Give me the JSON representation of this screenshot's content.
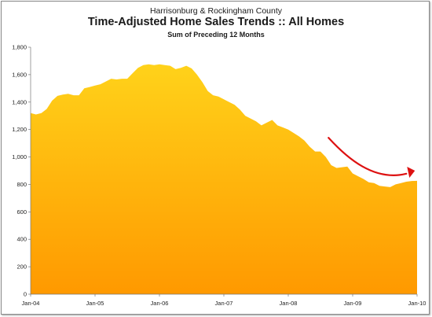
{
  "chart_data": {
    "type": "area",
    "title_line1": "Harrisonburg & Rockingham County",
    "title": "Time-Adjusted Home Sales Trends  ::  All Homes",
    "subtitle": "Sum of Preceding 12 Months",
    "xlabel": "",
    "ylabel": "",
    "ylim": [
      0,
      1800
    ],
    "yticks": [
      0,
      200,
      400,
      600,
      800,
      1000,
      1200,
      1400,
      1600,
      1800
    ],
    "ytick_labels": [
      "0",
      "200",
      "400",
      "600",
      "800",
      "1,000",
      "1,200",
      "1,400",
      "1,600",
      "1,800"
    ],
    "xticks": [
      0,
      12,
      24,
      36,
      48,
      60,
      72
    ],
    "xtick_labels": [
      "Jan-04",
      "Jan-05",
      "Jan-06",
      "Jan-07",
      "Jan-08",
      "Jan-09",
      "Jan-10"
    ],
    "xlim": [
      0,
      72
    ],
    "grid": false,
    "fill_colors": [
      "#ffd21a",
      "#ff9900"
    ],
    "annotation_color": "#dd1111",
    "x": [
      0,
      1,
      2,
      3,
      4,
      5,
      6,
      7,
      8,
      9,
      10,
      11,
      12,
      13,
      14,
      15,
      16,
      17,
      18,
      19,
      20,
      21,
      22,
      23,
      24,
      25,
      26,
      27,
      28,
      29,
      30,
      31,
      32,
      33,
      34,
      35,
      36,
      37,
      38,
      39,
      40,
      41,
      42,
      43,
      44,
      45,
      46,
      47,
      48,
      49,
      50,
      51,
      52,
      53,
      54,
      55,
      56,
      57,
      58,
      59,
      60,
      61,
      62,
      63,
      64,
      65,
      66,
      67,
      68,
      69,
      70,
      71,
      72
    ],
    "values": [
      1320,
      1310,
      1320,
      1350,
      1410,
      1445,
      1455,
      1460,
      1450,
      1450,
      1500,
      1510,
      1520,
      1530,
      1550,
      1570,
      1565,
      1570,
      1570,
      1610,
      1650,
      1670,
      1675,
      1670,
      1675,
      1670,
      1665,
      1640,
      1650,
      1665,
      1645,
      1600,
      1545,
      1480,
      1450,
      1440,
      1420,
      1400,
      1380,
      1345,
      1300,
      1280,
      1260,
      1230,
      1250,
      1270,
      1230,
      1215,
      1200,
      1175,
      1150,
      1120,
      1075,
      1040,
      1040,
      1000,
      940,
      920,
      925,
      930,
      880,
      860,
      840,
      815,
      810,
      790,
      785,
      780,
      800,
      810,
      820,
      825,
      826
    ]
  }
}
